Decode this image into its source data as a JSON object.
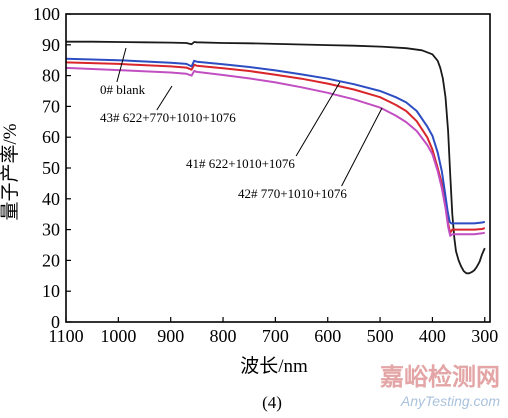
{
  "chart_data": {
    "type": "line",
    "xlabel": "波长/nm",
    "ylabel": "量子产率/%",
    "caption": "(4)",
    "xlim": [
      1100,
      290
    ],
    "ylim": [
      0,
      100
    ],
    "x_ticks": [
      1100,
      1000,
      900,
      800,
      700,
      600,
      500,
      400,
      300
    ],
    "y_ticks": [
      0,
      10,
      20,
      30,
      40,
      50,
      60,
      70,
      80,
      90,
      100
    ],
    "grid": false,
    "series": [
      {
        "name": "0# blank",
        "color": "#1a1a1a",
        "points": [
          [
            1100,
            91
          ],
          [
            1050,
            91
          ],
          [
            1000,
            90.9
          ],
          [
            950,
            90.8
          ],
          [
            900,
            90.7
          ],
          [
            870,
            90.6
          ],
          [
            860,
            90.2
          ],
          [
            855,
            90.9
          ],
          [
            850,
            90.8
          ],
          [
            800,
            90.6
          ],
          [
            750,
            90.5
          ],
          [
            700,
            90.3
          ],
          [
            650,
            90.1
          ],
          [
            600,
            89.9
          ],
          [
            550,
            89.7
          ],
          [
            500,
            89.4
          ],
          [
            450,
            88.9
          ],
          [
            420,
            88.2
          ],
          [
            400,
            86.9
          ],
          [
            390,
            84.8
          ],
          [
            385,
            82.5
          ],
          [
            380,
            79
          ],
          [
            375,
            73
          ],
          [
            370,
            62
          ],
          [
            366,
            48
          ],
          [
            362,
            35
          ],
          [
            358,
            27
          ],
          [
            355,
            23
          ],
          [
            350,
            20
          ],
          [
            345,
            18
          ],
          [
            340,
            16.5
          ],
          [
            335,
            15.8
          ],
          [
            330,
            15.8
          ],
          [
            325,
            16.2
          ],
          [
            320,
            16.8
          ],
          [
            315,
            18
          ],
          [
            310,
            19.5
          ],
          [
            305,
            22
          ],
          [
            300,
            24
          ]
        ]
      },
      {
        "name": "41# 622+1010+1076",
        "color": "#d9262b",
        "points": [
          [
            1100,
            84.3
          ],
          [
            1000,
            83.8
          ],
          [
            900,
            83
          ],
          [
            870,
            82.6
          ],
          [
            860,
            81.9
          ],
          [
            855,
            83.5
          ],
          [
            850,
            83.2
          ],
          [
            800,
            82.4
          ],
          [
            750,
            81.5
          ],
          [
            700,
            80.3
          ],
          [
            650,
            79
          ],
          [
            600,
            77.4
          ],
          [
            550,
            75.5
          ],
          [
            500,
            73
          ],
          [
            470,
            70.5
          ],
          [
            450,
            68.5
          ],
          [
            430,
            65.2
          ],
          [
            410,
            60
          ],
          [
            400,
            56
          ],
          [
            390,
            50
          ],
          [
            382,
            45
          ],
          [
            375,
            38
          ],
          [
            370,
            32
          ],
          [
            366,
            29
          ],
          [
            362,
            30
          ],
          [
            355,
            30
          ],
          [
            340,
            30
          ],
          [
            320,
            30
          ],
          [
            305,
            30.2
          ],
          [
            300,
            30.5
          ]
        ]
      },
      {
        "name": "42# 770+1010+1076",
        "color": "#2d4ec2",
        "points": [
          [
            1100,
            85.5
          ],
          [
            1000,
            85
          ],
          [
            900,
            84.2
          ],
          [
            870,
            83.8
          ],
          [
            860,
            83
          ],
          [
            855,
            84.8
          ],
          [
            850,
            84.5
          ],
          [
            800,
            83.7
          ],
          [
            750,
            82.8
          ],
          [
            700,
            81.7
          ],
          [
            650,
            80.4
          ],
          [
            600,
            79
          ],
          [
            550,
            77.2
          ],
          [
            500,
            75
          ],
          [
            470,
            73
          ],
          [
            450,
            71.3
          ],
          [
            430,
            68.5
          ],
          [
            410,
            63.5
          ],
          [
            400,
            60.5
          ],
          [
            390,
            55
          ],
          [
            382,
            49
          ],
          [
            376,
            42
          ],
          [
            371,
            36
          ],
          [
            367,
            32.5
          ],
          [
            364,
            32
          ],
          [
            355,
            32
          ],
          [
            340,
            32
          ],
          [
            320,
            32
          ],
          [
            305,
            32.3
          ],
          [
            300,
            32.5
          ]
        ]
      },
      {
        "name": "43# 622+770+1010+1076",
        "color": "#c24fc2",
        "points": [
          [
            1100,
            82.5
          ],
          [
            1000,
            81.8
          ],
          [
            900,
            81
          ],
          [
            870,
            80.6
          ],
          [
            860,
            80
          ],
          [
            855,
            81.5
          ],
          [
            850,
            81.2
          ],
          [
            800,
            80.2
          ],
          [
            750,
            79.1
          ],
          [
            700,
            77.8
          ],
          [
            650,
            76.2
          ],
          [
            600,
            74.4
          ],
          [
            550,
            72.3
          ],
          [
            500,
            69.6
          ],
          [
            470,
            67
          ],
          [
            450,
            64.9
          ],
          [
            430,
            62
          ],
          [
            410,
            57.5
          ],
          [
            400,
            54.5
          ],
          [
            390,
            49
          ],
          [
            382,
            43.5
          ],
          [
            375,
            37
          ],
          [
            370,
            31
          ],
          [
            366,
            28
          ],
          [
            362,
            28.5
          ],
          [
            355,
            28.5
          ],
          [
            340,
            28.5
          ],
          [
            320,
            28.5
          ],
          [
            305,
            28.8
          ],
          [
            300,
            29
          ]
        ]
      }
    ],
    "annotations": [
      {
        "text": "0# blank",
        "series": 0
      },
      {
        "text": "43# 622+770+1010+1076",
        "series": 3
      },
      {
        "text": "41# 622+1010+1076",
        "series": 1
      },
      {
        "text": "42# 770+1010+1076",
        "series": 2
      }
    ]
  },
  "watermark": {
    "cn": "嘉峪检测网",
    "en": "AnyTesting.com"
  }
}
